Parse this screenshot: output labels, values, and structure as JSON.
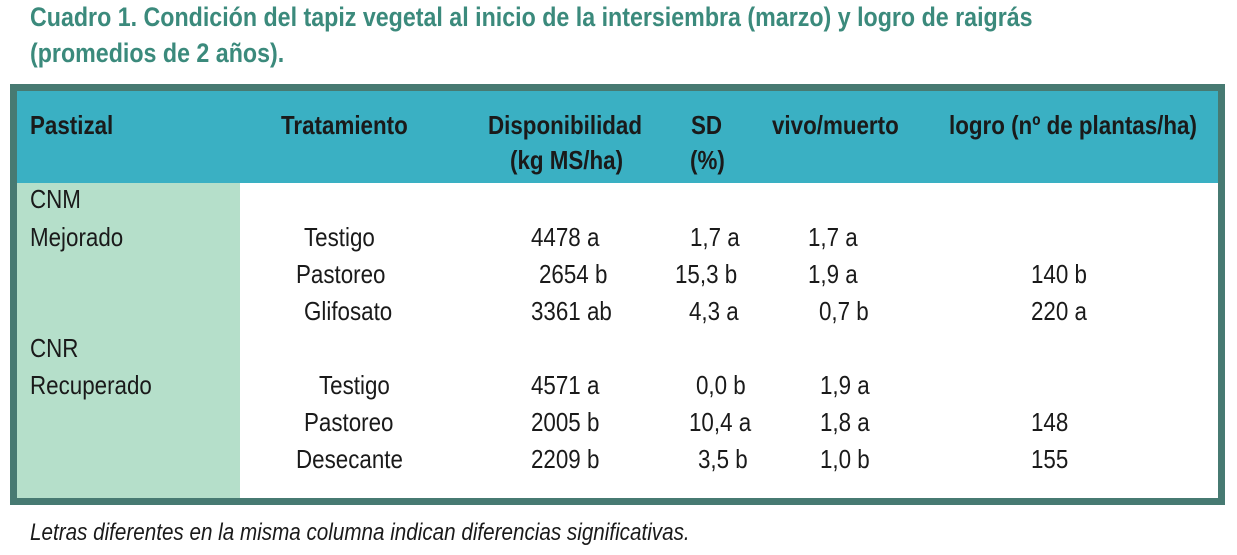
{
  "title": {
    "line1": "Cuadro 1. Condición del tapiz vegetal al inicio de la intersiembra (marzo) y logro de raigrás",
    "line2": "(promedios de 2 años)."
  },
  "headers": {
    "pastizal": "Pastizal",
    "tratamiento": "Tratamiento",
    "disp1": "Disponibilidad",
    "disp2": "(kg MS/ha)",
    "sd1": "SD",
    "sd2": "(%)",
    "vivo": "vivo/muerto",
    "logro": "logro (nº de plantas/ha)"
  },
  "groups": [
    {
      "l1": "CNM",
      "l2": "Mejorado"
    },
    {
      "l1": "CNR",
      "l2": "Recuperado"
    }
  ],
  "rows": [
    {
      "trat": "Testigo",
      "disp": "4478 a",
      "sd": "1,7 a",
      "vivo": "1,7 a",
      "logro": ""
    },
    {
      "trat": "Pastoreo",
      "disp": "2654 b",
      "sd": "15,3 b",
      "vivo": "1,9 a",
      "logro": "140 b"
    },
    {
      "trat": "Glifosato",
      "disp": "3361 ab",
      "sd": "4,3  a",
      "vivo": "0,7 b",
      "logro": "220 a"
    },
    {
      "trat": "Testigo",
      "disp": "4571 a",
      "sd": "0,0 b",
      "vivo": "1,9 a",
      "logro": ""
    },
    {
      "trat": "Pastoreo",
      "disp": "2005 b",
      "sd": "10,4 a",
      "vivo": "1,8 a",
      "logro": "148"
    },
    {
      "trat": "Desecante",
      "disp": "2209 b",
      "sd": "3,5 b",
      "vivo": "1,0 b",
      "logro": "155"
    }
  ],
  "footnote": "Letras diferentes en la misma columna indican diferencias significativas.",
  "colors": {
    "title": "#3b8a7c",
    "header": "#3ab0c3",
    "border": "#477a72",
    "group": "#b5dfca"
  }
}
